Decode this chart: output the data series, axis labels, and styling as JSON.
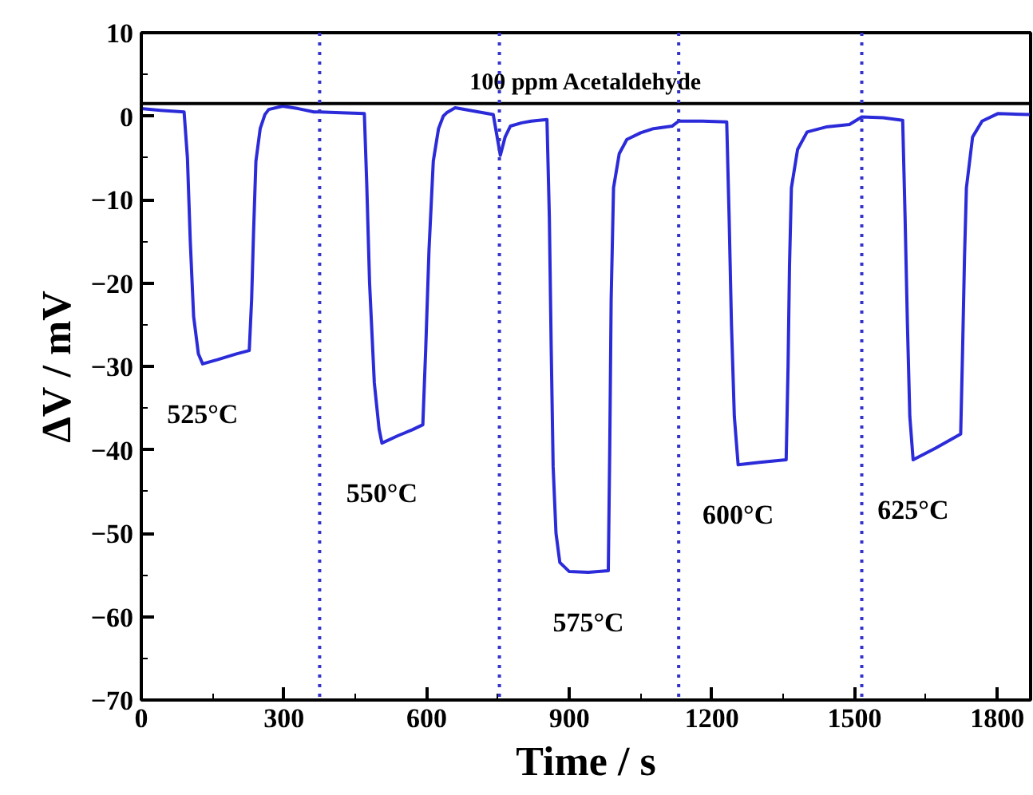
{
  "chart_data": {
    "type": "line",
    "xlabel": "Time / s",
    "ylabel": "ΔV / mV",
    "x": [
      0,
      40,
      90,
      97,
      103,
      110,
      120,
      129,
      160,
      200,
      227,
      232,
      236,
      241,
      250,
      260,
      268,
      297,
      330,
      363,
      375,
      420,
      469,
      474,
      480,
      490,
      500,
      506,
      540,
      570,
      592,
      598,
      605,
      614,
      625,
      635,
      642,
      660,
      700,
      740,
      755,
      765,
      776,
      800,
      820,
      853,
      858,
      862,
      866,
      872,
      880,
      900,
      940,
      982,
      985,
      988,
      993,
      1005,
      1021,
      1050,
      1077,
      1116,
      1130,
      1180,
      1231,
      1236,
      1241,
      1247,
      1255,
      1300,
      1356,
      1360,
      1363,
      1367,
      1380,
      1400,
      1440,
      1489,
      1515,
      1560,
      1601,
      1606,
      1611,
      1616,
      1623,
      1670,
      1723,
      1727,
      1731,
      1735,
      1748,
      1768,
      1801,
      1868
    ],
    "series": [
      {
        "color": "#2b2bd9",
        "values": [
          0.9,
          0.7,
          0.5,
          -5,
          -15,
          -24,
          -28.5,
          -29.7,
          -29.2,
          -28.5,
          -28.1,
          -22,
          -14,
          -5.4,
          -1.5,
          0.2,
          0.8,
          1.2,
          0.9,
          0.5,
          0.5,
          0.4,
          0.3,
          -8,
          -20,
          -32,
          -37.5,
          -39.2,
          -38.3,
          -37.6,
          -37,
          -28,
          -16,
          -5.4,
          -1.5,
          0,
          0.4,
          1,
          0.6,
          0.2,
          -4.7,
          -2.5,
          -1.2,
          -0.8,
          -0.6,
          -0.4,
          -12,
          -28,
          -42,
          -50,
          -53.5,
          -54.6,
          -54.7,
          -54.5,
          -40,
          -22,
          -8.6,
          -4.5,
          -2.8,
          -2,
          -1.5,
          -1.2,
          -0.6,
          -0.6,
          -0.7,
          -12,
          -25,
          -36,
          -41.8,
          -41.5,
          -41.2,
          -30,
          -18,
          -8.6,
          -4,
          -1.9,
          -1.3,
          -1,
          -0.1,
          -0.2,
          -0.5,
          -12,
          -25,
          -36,
          -41.2,
          -39.8,
          -38.1,
          -28,
          -17,
          -8.6,
          -2.5,
          -0.6,
          0.3,
          0.2
        ]
      }
    ],
    "xlim": [
      0,
      1870
    ],
    "ylim": [
      -70,
      10
    ],
    "xticks": [
      0,
      300,
      600,
      900,
      1200,
      1500,
      1800
    ],
    "yticks": [
      -70,
      -60,
      -50,
      -40,
      -30,
      -20,
      -10,
      0,
      10
    ],
    "marker": "none",
    "line_style": "solid",
    "grid": false,
    "ref_lines": [
      {
        "axis": "y",
        "value": 1.5,
        "label": "100 ppm Acetaldehyde",
        "color": "#000000",
        "line_style": "solid"
      },
      {
        "axis": "x",
        "value": 375,
        "color": "#3333cc",
        "line_style": "dotted"
      },
      {
        "axis": "x",
        "value": 753,
        "color": "#3333cc",
        "line_style": "dotted"
      },
      {
        "axis": "x",
        "value": 1130,
        "color": "#3333cc",
        "line_style": "dotted"
      },
      {
        "axis": "x",
        "value": 1515,
        "color": "#3333cc",
        "line_style": "dotted"
      }
    ],
    "annotations": [
      "525°C",
      "550°C",
      "575°C",
      "600°C",
      "625°C"
    ]
  }
}
